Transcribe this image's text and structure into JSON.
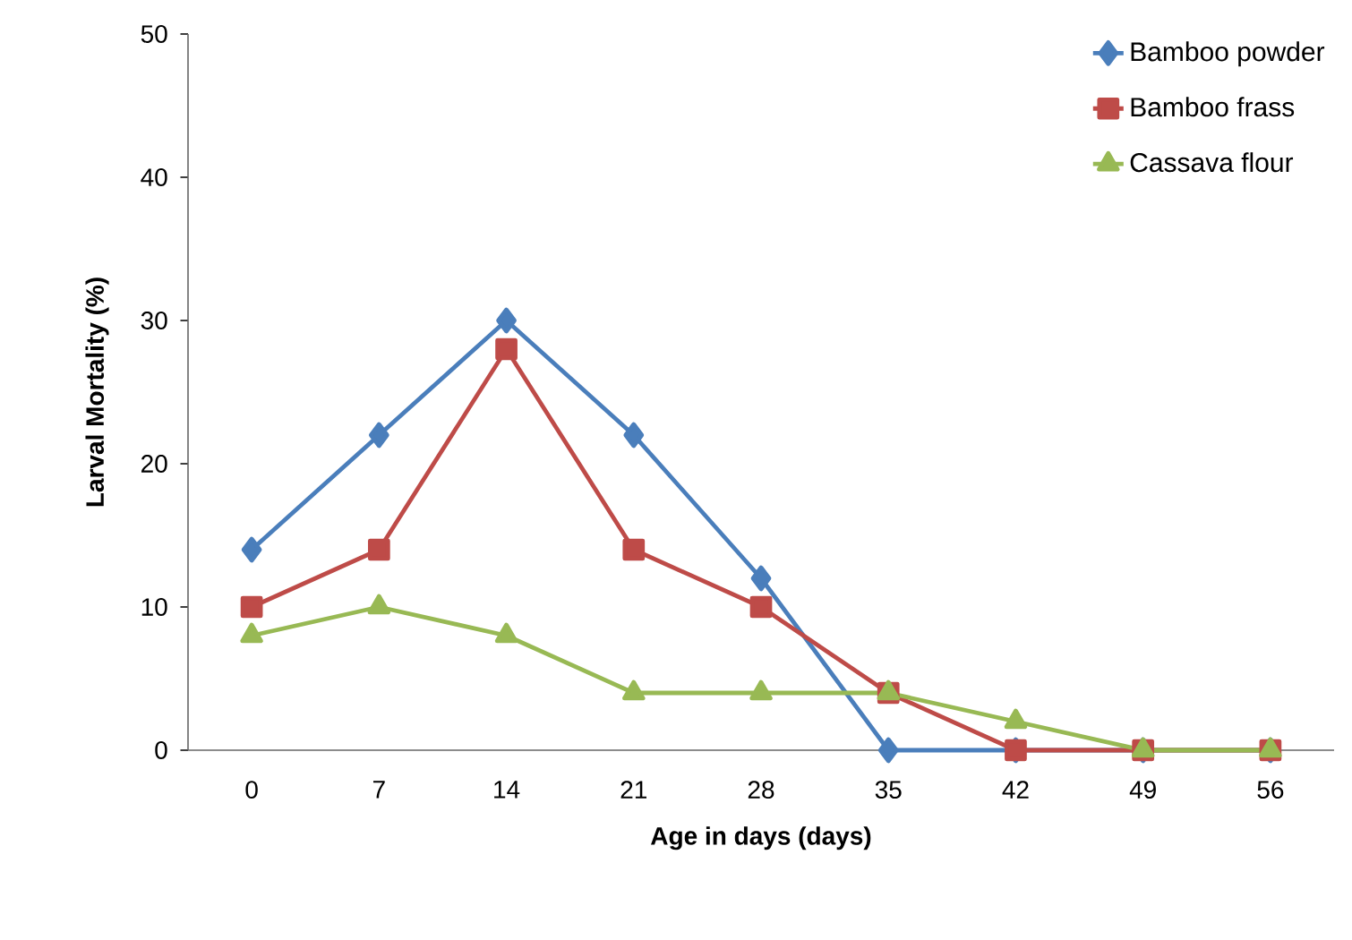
{
  "chart_data": {
    "type": "line",
    "xlabel": "Age in days (days)",
    "ylabel": "Larval Mortality (%)",
    "categories": [
      "0",
      "7",
      "14",
      "21",
      "28",
      "35",
      "42",
      "49",
      "56"
    ],
    "series": [
      {
        "name": "Bamboo powder",
        "color": "#4a7ebb",
        "marker": "diamond",
        "values": [
          14,
          22,
          30,
          22,
          12,
          0,
          0,
          0,
          0
        ]
      },
      {
        "name": "Bamboo frass",
        "color": "#be4b48",
        "marker": "square",
        "values": [
          10,
          14,
          28,
          14,
          10,
          4,
          0,
          0,
          0
        ]
      },
      {
        "name": "Cassava flour",
        "color": "#98b954",
        "marker": "triangle",
        "values": [
          8,
          10,
          8,
          4,
          4,
          4,
          2,
          0,
          0
        ]
      }
    ],
    "ylim": [
      0,
      50
    ],
    "yticks": [
      0,
      10,
      20,
      30,
      40,
      50
    ],
    "grid": false,
    "legend": "top right",
    "line_style": "solid"
  }
}
